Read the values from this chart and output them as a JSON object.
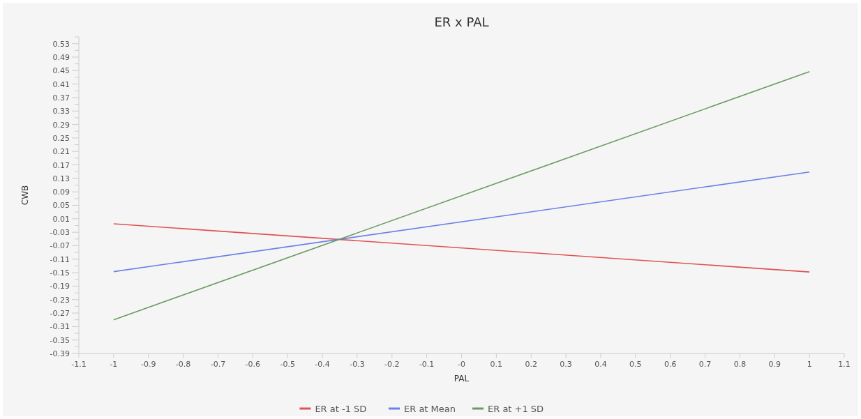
{
  "chart_data": {
    "type": "line",
    "title": "ER x PAL",
    "xlabel": "PAL",
    "ylabel": "CWB",
    "x": [
      -1,
      1
    ],
    "series": [
      {
        "name": "ER at -1 SD",
        "color": "#e05252",
        "values": [
          -0.005,
          -0.148
        ]
      },
      {
        "name": "ER at Mean",
        "color": "#6b80e8",
        "values": [
          -0.147,
          0.149
        ]
      },
      {
        "name": "ER at +1 SD",
        "color": "#6a9a62",
        "values": [
          -0.29,
          0.447
        ]
      }
    ],
    "xlim": [
      -1.1,
      1.1
    ],
    "xticks": [
      -1.1,
      -1,
      -0.9,
      -0.8,
      -0.7,
      -0.6,
      -0.5,
      -0.4,
      -0.3,
      -0.2,
      -0.1,
      {
        "value": 0,
        "label": "-0"
      },
      0.1,
      0.2,
      0.3,
      0.4,
      0.5,
      0.6,
      0.7,
      0.8,
      0.9,
      1,
      1.1
    ],
    "ylim": [
      -0.39,
      0.55
    ],
    "yticks": [
      -0.39,
      {
        "value": -0.37,
        "label": null
      },
      -0.35,
      {
        "value": -0.33,
        "label": null
      },
      -0.31,
      {
        "value": -0.29,
        "label": null
      },
      -0.27,
      {
        "value": -0.25,
        "label": null
      },
      -0.23,
      {
        "value": -0.21,
        "label": null
      },
      -0.19,
      {
        "value": -0.17,
        "label": null
      },
      -0.15,
      {
        "value": -0.13,
        "label": null
      },
      -0.11,
      {
        "value": -0.09,
        "label": null
      },
      -0.07,
      {
        "value": -0.05,
        "label": null
      },
      -0.03,
      {
        "value": -0.01,
        "label": null
      },
      0.01,
      {
        "value": 0.03,
        "label": null
      },
      0.05,
      {
        "value": 0.07,
        "label": null
      },
      0.09,
      {
        "value": 0.11,
        "label": null
      },
      0.13,
      {
        "value": 0.15,
        "label": null
      },
      0.17,
      {
        "value": 0.19,
        "label": null
      },
      0.21,
      {
        "value": 0.23,
        "label": null
      },
      0.25,
      {
        "value": 0.27,
        "label": null
      },
      0.29,
      {
        "value": 0.31,
        "label": null
      },
      0.33,
      {
        "value": 0.35,
        "label": null
      },
      0.37,
      {
        "value": 0.39,
        "label": null
      },
      0.41,
      {
        "value": 0.43,
        "label": null
      },
      0.45,
      {
        "value": 0.47,
        "label": null
      },
      0.49,
      {
        "value": 0.51,
        "label": null
      },
      0.53,
      {
        "value": 0.55,
        "label": null
      }
    ],
    "legend": "bottom",
    "marker": "none",
    "line_style": "solid"
  }
}
